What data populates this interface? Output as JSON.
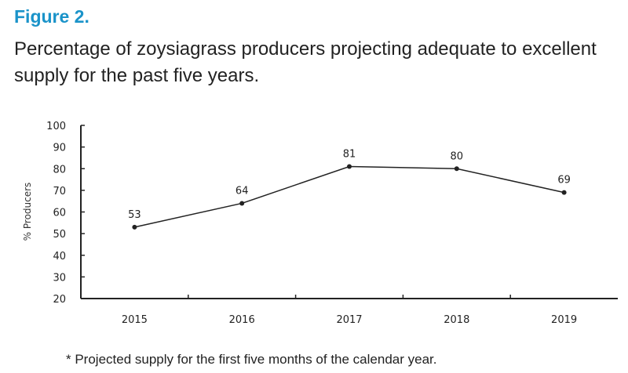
{
  "figure": {
    "label": "Figure 2.",
    "title": "Percentage of zoysiagrass producers projecting adequate to excellent supply for the past five years.",
    "footnote": "*  Projected supply for the first five months of the calendar year."
  },
  "colors": {
    "accent": "#1a93c9",
    "line": "#222222"
  },
  "chart_data": {
    "type": "line",
    "title": "",
    "xlabel": "",
    "ylabel": "% Producers",
    "categories": [
      "2015",
      "2016",
      "2017",
      "2018",
      "2019"
    ],
    "series": [
      {
        "values": [
          53,
          64,
          81,
          80,
          69
        ]
      }
    ],
    "ylim": [
      20,
      100
    ],
    "yticks": [
      20,
      30,
      40,
      50,
      60,
      70,
      80,
      90,
      100
    ],
    "data_labels": true,
    "grid": false,
    "legend": "none"
  }
}
